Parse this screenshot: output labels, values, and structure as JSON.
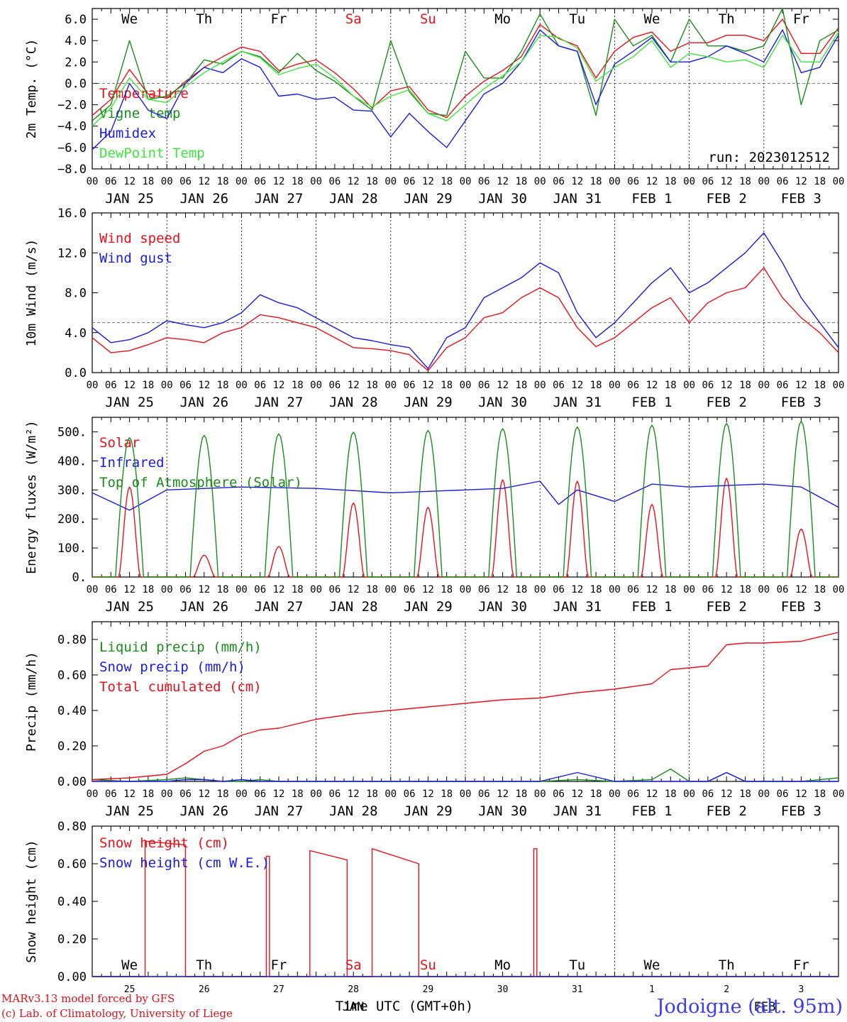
{
  "run_label": "run: 2023012512",
  "hour_ticks": [
    "00",
    "06",
    "12",
    "18"
  ],
  "day_labels": [
    "JAN 25",
    "JAN 26",
    "JAN 27",
    "JAN 28",
    "JAN 29",
    "JAN 30",
    "JAN 31",
    "FEB  1",
    "FEB  2",
    "FEB  3"
  ],
  "weekdays": [
    {
      "label": "We",
      "weekend": false
    },
    {
      "label": "Th",
      "weekend": false
    },
    {
      "label": "Fr",
      "weekend": false
    },
    {
      "label": "Sa",
      "weekend": true
    },
    {
      "label": "Su",
      "weekend": true
    },
    {
      "label": "Mo",
      "weekend": false
    },
    {
      "label": "Tu",
      "weekend": false
    },
    {
      "label": "We",
      "weekend": false
    },
    {
      "label": "Th",
      "weekend": false
    },
    {
      "label": "Fr",
      "weekend": false
    }
  ],
  "bottom_day_numbers": [
    "25",
    "26",
    "27",
    "28",
    "29",
    "30",
    "31",
    "1",
    "2",
    "3"
  ],
  "bottom_month_labels": [
    "JAN",
    "FEB"
  ],
  "xlabel": "Time UTC (GMT+0h)",
  "footer": {
    "line1": "MARv3.13 model forced by GFS",
    "line2": "(c) Lab. of Climatology, University of Liege",
    "station": "Jodoigne (alt. 95m)"
  },
  "colors": {
    "red": "#e8101a",
    "green": "#1a8c1a",
    "blue": "#1a1ae0",
    "lightgreen": "#3ee63e",
    "weekend": "#e8101a"
  },
  "chart_data": [
    {
      "type": "line",
      "ylabel": "2m Temp. (°C)",
      "ylim": [
        -8,
        7
      ],
      "yticks": [
        "6.0",
        "4.0",
        "2.0",
        "0.0",
        "−2.0",
        "−4.0",
        "−6.0",
        "−8.0"
      ],
      "ytick_values": [
        6,
        4,
        2,
        0,
        -2,
        -4,
        -6,
        -8
      ],
      "ref_line": 0,
      "x": [
        0,
        6,
        12,
        18,
        24,
        30,
        36,
        42,
        48,
        54,
        60,
        66,
        72,
        78,
        84,
        90,
        96,
        102,
        108,
        114,
        120,
        126,
        132,
        138,
        144,
        150,
        156,
        162,
        168,
        174,
        180,
        186,
        192,
        198,
        204,
        210,
        216,
        222,
        228,
        234,
        240
      ],
      "series": [
        {
          "name": "Temperature",
          "color": "red",
          "values": [
            -3.0,
            -1.5,
            1.3,
            -1.0,
            -1.4,
            0.2,
            1.5,
            2.5,
            3.4,
            3.0,
            1.2,
            1.8,
            2.2,
            1.0,
            -0.5,
            -2.3,
            -0.7,
            -0.3,
            -2.5,
            -3.2,
            -1.2,
            0.2,
            1.2,
            2.5,
            5.5,
            4.2,
            3.5,
            0.5,
            3.0,
            4.3,
            4.8,
            3.0,
            3.8,
            3.8,
            4.5,
            4.5,
            4.0,
            6.0,
            2.8,
            2.8,
            5.2
          ]
        },
        {
          "name": "Vigne temp",
          "color": "green",
          "values": [
            -3.5,
            -2.0,
            4.0,
            -1.5,
            -1.2,
            0.0,
            2.2,
            1.8,
            3.0,
            2.5,
            1.0,
            2.8,
            1.2,
            0.2,
            -1.2,
            -2.5,
            4.0,
            -0.8,
            -2.8,
            -3.0,
            3.0,
            0.5,
            0.5,
            3.0,
            6.5,
            3.5,
            3.0,
            -3.0,
            6.0,
            3.5,
            4.5,
            2.0,
            6.0,
            3.5,
            3.5,
            3.0,
            3.5,
            7.0,
            -2.0,
            4.0,
            5.0
          ]
        },
        {
          "name": "Humidex",
          "color": "blue",
          "values": [
            -6.2,
            -4.5,
            0.0,
            -2.5,
            -3.3,
            0.0,
            1.5,
            1.0,
            2.3,
            1.5,
            -1.2,
            -1.0,
            -1.5,
            -1.3,
            -2.5,
            -2.6,
            -5.0,
            -2.8,
            -4.5,
            -6.0,
            -3.5,
            -1.0,
            0.0,
            2.0,
            5.0,
            3.5,
            3.0,
            -2.0,
            1.8,
            3.0,
            4.3,
            2.0,
            2.0,
            2.5,
            3.5,
            2.8,
            2.0,
            5.0,
            1.0,
            1.5,
            4.5
          ]
        },
        {
          "name": "DewPoint Temp",
          "color": "lightgreen",
          "values": [
            -4.0,
            -2.3,
            0.5,
            -1.5,
            -1.8,
            -0.3,
            1.0,
            2.0,
            3.0,
            2.4,
            0.8,
            1.4,
            1.8,
            0.5,
            -1.2,
            -2.2,
            -1.2,
            -0.6,
            -2.8,
            -3.5,
            -2.0,
            -0.5,
            0.7,
            2.0,
            4.5,
            4.3,
            3.3,
            0.2,
            1.5,
            2.5,
            4.0,
            1.5,
            2.8,
            2.5,
            2.0,
            2.2,
            1.5,
            4.5,
            2.0,
            2.0,
            4.8
          ]
        }
      ]
    },
    {
      "type": "line",
      "ylabel": "10m Wind (m/s)",
      "ylim": [
        0,
        16
      ],
      "yticks": [
        "16.0",
        "12.0",
        "8.0",
        "4.0",
        "0.0"
      ],
      "ytick_values": [
        16,
        12,
        8,
        4,
        0
      ],
      "ref_line": 5,
      "x": [
        0,
        6,
        12,
        18,
        24,
        30,
        36,
        42,
        48,
        54,
        60,
        66,
        72,
        78,
        84,
        90,
        96,
        102,
        108,
        114,
        120,
        126,
        132,
        138,
        144,
        150,
        156,
        162,
        168,
        174,
        180,
        186,
        192,
        198,
        204,
        210,
        216,
        222,
        228,
        234,
        240
      ],
      "series": [
        {
          "name": "Wind speed",
          "color": "red",
          "values": [
            3.5,
            2.0,
            2.2,
            2.8,
            3.5,
            3.3,
            3.0,
            4.0,
            4.5,
            5.8,
            5.5,
            5.0,
            4.5,
            3.5,
            2.5,
            2.4,
            2.2,
            1.8,
            0.2,
            2.5,
            3.5,
            5.5,
            6.0,
            7.5,
            8.5,
            7.5,
            4.5,
            2.6,
            3.5,
            5.0,
            6.5,
            7.5,
            5.0,
            7.0,
            8.0,
            8.5,
            10.5,
            7.5,
            5.5,
            4.0,
            2.0
          ]
        },
        {
          "name": "Wind gust",
          "color": "blue",
          "values": [
            4.5,
            3.0,
            3.3,
            4.0,
            5.2,
            4.8,
            4.5,
            5.0,
            6.0,
            7.8,
            7.0,
            6.5,
            5.5,
            4.5,
            3.5,
            3.2,
            2.8,
            2.5,
            0.4,
            3.5,
            4.5,
            7.5,
            8.5,
            9.5,
            11.0,
            10.0,
            6.0,
            3.5,
            5.0,
            7.0,
            9.0,
            10.5,
            8.0,
            9.0,
            10.5,
            12.0,
            14.0,
            11.0,
            7.5,
            5.0,
            2.5
          ]
        }
      ]
    },
    {
      "type": "line",
      "ylabel": "Energy fluxes (W/m²)",
      "ylim": [
        0,
        550
      ],
      "yticks": [
        "500.",
        "400.",
        "300.",
        "200.",
        "100.",
        "0."
      ],
      "ytick_values": [
        500,
        400,
        300,
        200,
        100,
        0
      ],
      "series": [
        {
          "name": "Solar",
          "color": "red",
          "day_peaks": [
            310,
            75,
            105,
            255,
            240,
            335,
            330,
            250,
            340,
            165
          ]
        },
        {
          "name": "Infrared",
          "color": "blue",
          "x": [
            0,
            12,
            24,
            48,
            72,
            96,
            120,
            132,
            144,
            150,
            156,
            168,
            180,
            192,
            204,
            216,
            228,
            240
          ],
          "values": [
            290,
            230,
            300,
            310,
            305,
            290,
            300,
            305,
            330,
            250,
            300,
            260,
            320,
            310,
            315,
            320,
            310,
            240
          ]
        },
        {
          "name": "Top of Atmosphere (Solar)",
          "color": "green",
          "day_peaks": [
            480,
            488,
            493,
            499,
            505,
            511,
            517,
            523,
            529,
            536
          ]
        }
      ]
    },
    {
      "type": "line",
      "ylabel": "Precip (mm/h)",
      "ylim": [
        0,
        0.9
      ],
      "yticks": [
        "0.80",
        "0.60",
        "0.40",
        "0.20",
        "0.00"
      ],
      "ytick_values": [
        0.8,
        0.6,
        0.4,
        0.2,
        0
      ],
      "x": [
        0,
        12,
        24,
        30,
        36,
        42,
        48,
        54,
        60,
        72,
        84,
        96,
        108,
        120,
        132,
        144,
        156,
        168,
        180,
        186,
        192,
        198,
        204,
        210,
        216,
        228,
        240
      ],
      "series": [
        {
          "name": "Liquid precip (mm/h)",
          "color": "green",
          "values": [
            0.01,
            0.0,
            0.01,
            0.02,
            0.01,
            0.0,
            0.0,
            0.01,
            0.0,
            0.0,
            0.0,
            0.0,
            0.0,
            0.0,
            0.0,
            0.0,
            0.01,
            0.0,
            0.01,
            0.07,
            0.0,
            0.0,
            0.05,
            0.0,
            0.0,
            0.0,
            0.02
          ]
        },
        {
          "name": "Snow precip (mm/h)",
          "color": "blue",
          "values": [
            0.0,
            0.0,
            0.0,
            0.01,
            0.01,
            0.0,
            0.01,
            0.0,
            0.0,
            0.0,
            0.0,
            0.0,
            0.0,
            0.0,
            0.0,
            0.0,
            0.05,
            0.0,
            0.0,
            0.0,
            0.0,
            0.0,
            0.05,
            0.0,
            0.0,
            0.0,
            0.0
          ]
        },
        {
          "name": "Total cumulated (cm)",
          "color": "red",
          "values": [
            0.01,
            0.02,
            0.04,
            0.1,
            0.17,
            0.2,
            0.26,
            0.29,
            0.3,
            0.35,
            0.38,
            0.4,
            0.42,
            0.44,
            0.46,
            0.47,
            0.5,
            0.52,
            0.55,
            0.63,
            0.64,
            0.65,
            0.77,
            0.78,
            0.78,
            0.79,
            0.84
          ]
        }
      ]
    },
    {
      "type": "line",
      "ylabel": "Snow height (cm)",
      "ylim": [
        0,
        0.8
      ],
      "yticks": [
        "0.80",
        "0.60",
        "0.40",
        "0.20",
        "0.00"
      ],
      "ytick_values": [
        0.8,
        0.6,
        0.4,
        0.2,
        0
      ],
      "series": [
        {
          "name": "Snow height (cm)",
          "color": "red",
          "pulses": [
            [
              17,
              30,
              0.72,
              0.7
            ],
            [
              56,
              57,
              0.64,
              0.64
            ],
            [
              70,
              82,
              0.67,
              0.62
            ],
            [
              90,
              105,
              0.68,
              0.6
            ],
            [
              142,
              143,
              0.68,
              0.68
            ]
          ]
        },
        {
          "name": "Snow height (cm W.E.)",
          "color": "blue",
          "pulses": []
        }
      ]
    }
  ]
}
